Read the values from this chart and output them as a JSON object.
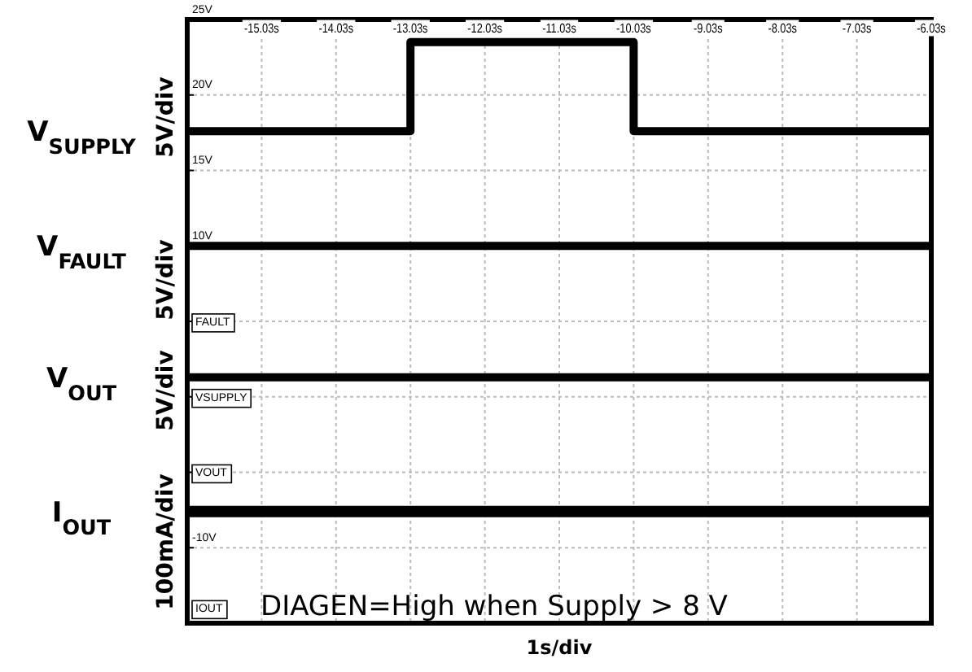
{
  "chart_data": {
    "type": "step",
    "xlabel": "1s/div",
    "xlim": [
      -16.03,
      -6.03
    ],
    "xticks": [
      {
        "value": -15.03,
        "label": "-15.03s"
      },
      {
        "value": -14.03,
        "label": "-14.03s"
      },
      {
        "value": -13.03,
        "label": "-13.03s"
      },
      {
        "value": -12.03,
        "label": "-12.03s"
      },
      {
        "value": -11.03,
        "label": "-11.03s"
      },
      {
        "value": -10.03,
        "label": "-10.03s"
      },
      {
        "value": -9.03,
        "label": "-9.03s"
      },
      {
        "value": -8.03,
        "label": "-8.03s"
      },
      {
        "value": -7.03,
        "label": "-7.03s"
      },
      {
        "value": -6.03,
        "label": "-6.03s"
      }
    ],
    "ylim": [
      -15,
      25
    ],
    "yticks": [
      {
        "value": 25,
        "label": "25V"
      },
      {
        "value": 20,
        "label": "20V"
      },
      {
        "value": 15,
        "label": "15V"
      },
      {
        "value": 10,
        "label": "10V"
      },
      {
        "value": 5,
        "label": null
      },
      {
        "value": 0,
        "label": null
      },
      {
        "value": -5,
        "label": null
      },
      {
        "value": -10,
        "label": "-10V"
      }
    ],
    "grid": true,
    "series": [
      {
        "name": "V$_{SUPPLY}$",
        "color": "#000000",
        "x": [
          -16.03,
          -13.03,
          -10.03,
          -6.03
        ],
        "values": [
          17.6,
          23.5,
          17.6,
          17.6
        ]
      },
      {
        "name": "V$_{FAULT}$",
        "color": "#000000",
        "x": [
          -16.03,
          -6.03
        ],
        "values": [
          10,
          10
        ]
      },
      {
        "name": "V$_{OUT}$",
        "color": "#000000",
        "x": [
          -16.03,
          -6.03
        ],
        "values": [
          1.3,
          1.3
        ]
      },
      {
        "name": "I$_{OUT}$",
        "color": "#000000",
        "x": [
          -16.03,
          -6.03
        ],
        "values": [
          -7.6,
          -7.6
        ]
      }
    ],
    "annotations": [
      "5V/div",
      "5V/div",
      "5V/div",
      "100mA/div",
      "FAULT",
      "VSUPPLY",
      "VOUT",
      "IOUT",
      "DIAGEN=High when Supply > 8 V"
    ]
  }
}
